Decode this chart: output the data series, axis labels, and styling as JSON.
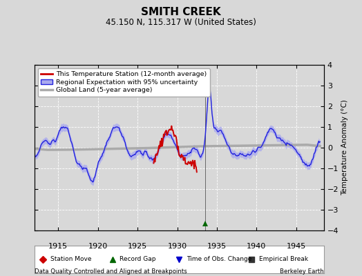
{
  "title": "SMITH CREEK",
  "subtitle": "45.150 N, 115.317 W (United States)",
  "ylabel": "Temperature Anomaly (°C)",
  "footer_left": "Data Quality Controlled and Aligned at Breakpoints",
  "footer_right": "Berkeley Earth",
  "xlim": [
    1912.0,
    1948.5
  ],
  "ylim": [
    -4,
    4
  ],
  "xticks": [
    1915,
    1920,
    1925,
    1930,
    1935,
    1940,
    1945
  ],
  "yticks": [
    -4,
    -3,
    -2,
    -1,
    0,
    1,
    2,
    3,
    4
  ],
  "bg_color": "#d8d8d8",
  "legend_labels": [
    "This Temperature Station (12-month average)",
    "Regional Expectation with 95% uncertainty",
    "Global Land (5-year average)"
  ],
  "marker_legend": [
    {
      "label": "Station Move",
      "color": "#cc0000",
      "marker": "D"
    },
    {
      "label": "Record Gap",
      "color": "#006600",
      "marker": "^"
    },
    {
      "label": "Time of Obs. Change",
      "color": "#0000cc",
      "marker": "v"
    },
    {
      "label": "Empirical Break",
      "color": "#333333",
      "marker": "s"
    }
  ],
  "obs_change_x": 1933.5,
  "regional_color": "#2222dd",
  "regional_uncertainty_color": "#aaaaee",
  "station_color": "#cc0000",
  "global_color": "#aaaaaa",
  "global_lw": 2.5
}
